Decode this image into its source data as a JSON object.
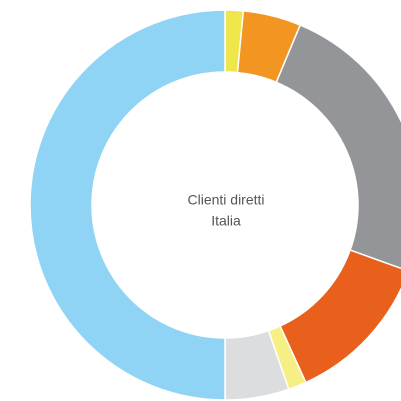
{
  "chart_data": {
    "type": "donut",
    "center_text": [
      "Clienti diretti",
      "Italia"
    ],
    "values": [
      1.5,
      4.8,
      24.2,
      12.7,
      1.5,
      5.3,
      50
    ],
    "colors": [
      "#eee64a",
      "#f39521",
      "#939598",
      "#e8601c",
      "#f5ef84",
      "#dcdddf",
      "#8fd4f5"
    ]
  }
}
